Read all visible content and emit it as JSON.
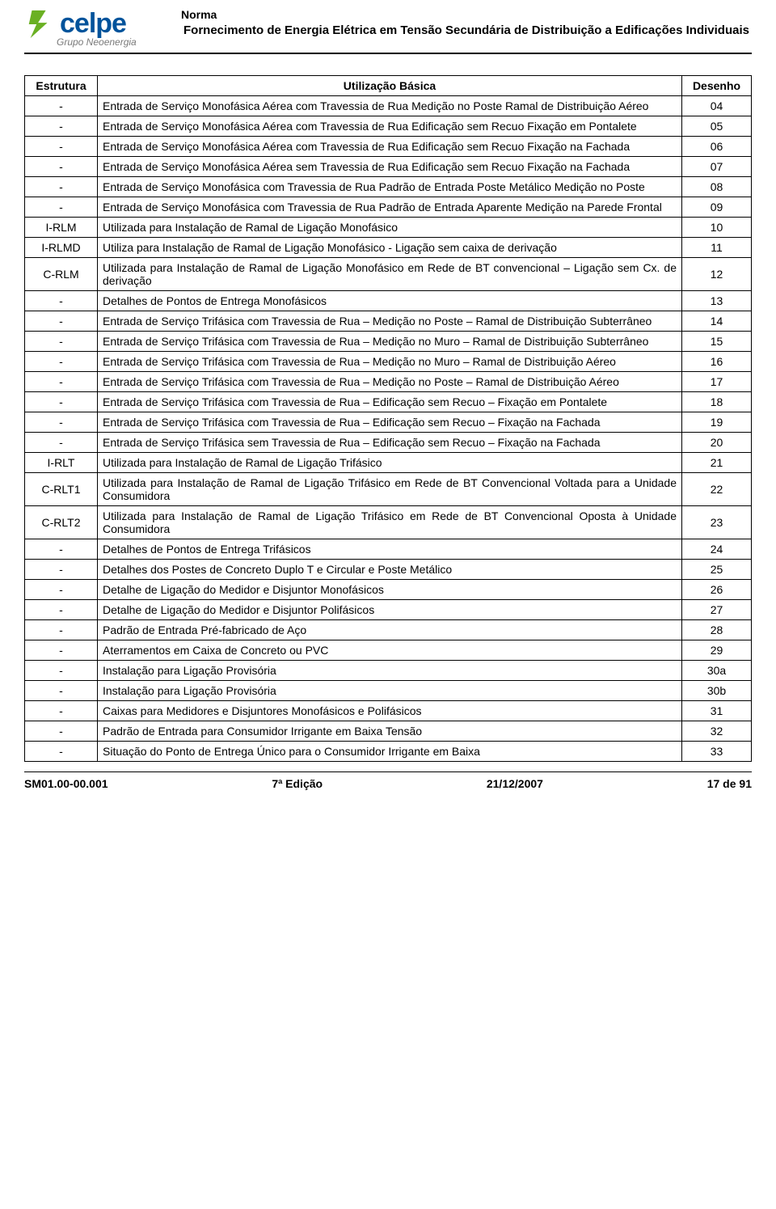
{
  "header": {
    "norma_label": "Norma",
    "title": "Fornecimento de Energia Elétrica em Tensão Secundária de Distribuição a Edificações Individuais",
    "logo_text": "celpe",
    "logo_subtitle": "Grupo Neoenergia",
    "logo_color": "#00539b",
    "bolt_color": "#6ab023"
  },
  "table": {
    "headers": [
      "Estrutura",
      "Utilização Básica",
      "Desenho"
    ],
    "rows": [
      {
        "estrutura": "-",
        "util": "Entrada de Serviço Monofásica Aérea com Travessia de Rua Medição no Poste Ramal de Distribuição Aéreo",
        "desenho": "04"
      },
      {
        "estrutura": "-",
        "util": "Entrada de Serviço Monofásica Aérea com Travessia de Rua Edificação sem Recuo Fixação em Pontalete",
        "desenho": "05"
      },
      {
        "estrutura": "-",
        "util": "Entrada de Serviço Monofásica Aérea com Travessia de Rua Edificação sem Recuo Fixação na Fachada",
        "desenho": "06"
      },
      {
        "estrutura": "-",
        "util": "Entrada de Serviço Monofásica Aérea sem Travessia de Rua Edificação sem Recuo Fixação na Fachada",
        "desenho": "07"
      },
      {
        "estrutura": "-",
        "util": "Entrada de Serviço Monofásica com Travessia de Rua Padrão de Entrada Poste Metálico Medição no Poste",
        "desenho": "08"
      },
      {
        "estrutura": "-",
        "util": "Entrada de Serviço Monofásica com Travessia de Rua Padrão de Entrada Aparente Medição na Parede Frontal",
        "desenho": "09"
      },
      {
        "estrutura": "I-RLM",
        "util": "Utilizada para Instalação de Ramal de Ligação Monofásico",
        "desenho": "10"
      },
      {
        "estrutura": "I-RLMD",
        "util": "Utiliza para Instalação de Ramal de Ligação Monofásico - Ligação sem caixa de derivação",
        "desenho": "11"
      },
      {
        "estrutura": "C-RLM",
        "util": "Utilizada para Instalação de Ramal de Ligação Monofásico em Rede de BT convencional – Ligação sem Cx. de derivação",
        "desenho": "12"
      },
      {
        "estrutura": "-",
        "util": "Detalhes de Pontos de Entrega Monofásicos",
        "desenho": "13"
      },
      {
        "estrutura": "-",
        "util": "Entrada de Serviço Trifásica com Travessia de Rua – Medição no Poste – Ramal de Distribuição Subterrâneo",
        "desenho": "14"
      },
      {
        "estrutura": "-",
        "util": "Entrada de Serviço Trifásica com Travessia de Rua – Medição no Muro – Ramal de Distribuição Subterrâneo",
        "desenho": "15"
      },
      {
        "estrutura": "-",
        "util": "Entrada de Serviço Trifásica com Travessia de Rua – Medição no Muro – Ramal de Distribuição Aéreo",
        "desenho": "16"
      },
      {
        "estrutura": "-",
        "util": "Entrada de Serviço Trifásica com Travessia de Rua – Medição no Poste – Ramal de Distribuição Aéreo",
        "desenho": "17"
      },
      {
        "estrutura": "-",
        "util": "Entrada de Serviço Trifásica com Travessia de Rua – Edificação sem Recuo – Fixação em Pontalete",
        "desenho": "18"
      },
      {
        "estrutura": "-",
        "util": "Entrada de Serviço Trifásica com Travessia de Rua – Edificação sem Recuo – Fixação na Fachada",
        "desenho": "19"
      },
      {
        "estrutura": "-",
        "util": "Entrada de Serviço Trifásica sem Travessia de Rua – Edificação sem Recuo – Fixação na Fachada",
        "desenho": "20"
      },
      {
        "estrutura": "I-RLT",
        "util": "Utilizada para Instalação de Ramal de Ligação Trifásico",
        "desenho": "21"
      },
      {
        "estrutura": "C-RLT1",
        "util": "Utilizada para Instalação de Ramal de Ligação Trifásico em Rede de BT Convencional Voltada para a Unidade Consumidora",
        "desenho": "22"
      },
      {
        "estrutura": "C-RLT2",
        "util": "Utilizada para Instalação de Ramal de Ligação Trifásico em Rede de BT Convencional Oposta à Unidade Consumidora",
        "desenho": "23"
      },
      {
        "estrutura": "-",
        "util": "Detalhes de Pontos de Entrega Trifásicos",
        "desenho": "24"
      },
      {
        "estrutura": "-",
        "util": "Detalhes dos Postes de Concreto Duplo T e Circular e Poste Metálico",
        "desenho": "25"
      },
      {
        "estrutura": "-",
        "util": "Detalhe de Ligação do Medidor e Disjuntor Monofásicos",
        "desenho": "26"
      },
      {
        "estrutura": "-",
        "util": "Detalhe de Ligação do Medidor e Disjuntor Polifásicos",
        "desenho": "27"
      },
      {
        "estrutura": "-",
        "util": "Padrão de Entrada Pré-fabricado de Aço",
        "desenho": "28"
      },
      {
        "estrutura": "-",
        "util": "Aterramentos em Caixa de Concreto ou PVC",
        "desenho": "29"
      },
      {
        "estrutura": "-",
        "util": "Instalação para Ligação Provisória",
        "desenho": "30a"
      },
      {
        "estrutura": "-",
        "util": "Instalação para Ligação Provisória",
        "desenho": "30b"
      },
      {
        "estrutura": "-",
        "util": "Caixas para Medidores e Disjuntores Monofásicos e Polifásicos",
        "desenho": "31"
      },
      {
        "estrutura": "-",
        "util": "Padrão de Entrada para Consumidor Irrigante em Baixa Tensão",
        "desenho": "32"
      },
      {
        "estrutura": "-",
        "util": "Situação do Ponto de Entrega Único para o Consumidor Irrigante em Baixa",
        "desenho": "33"
      }
    ]
  },
  "footer": {
    "left": "SM01.00-00.001",
    "center": "7ª Edição",
    "date": "21/12/2007",
    "page": "17 de 91"
  }
}
